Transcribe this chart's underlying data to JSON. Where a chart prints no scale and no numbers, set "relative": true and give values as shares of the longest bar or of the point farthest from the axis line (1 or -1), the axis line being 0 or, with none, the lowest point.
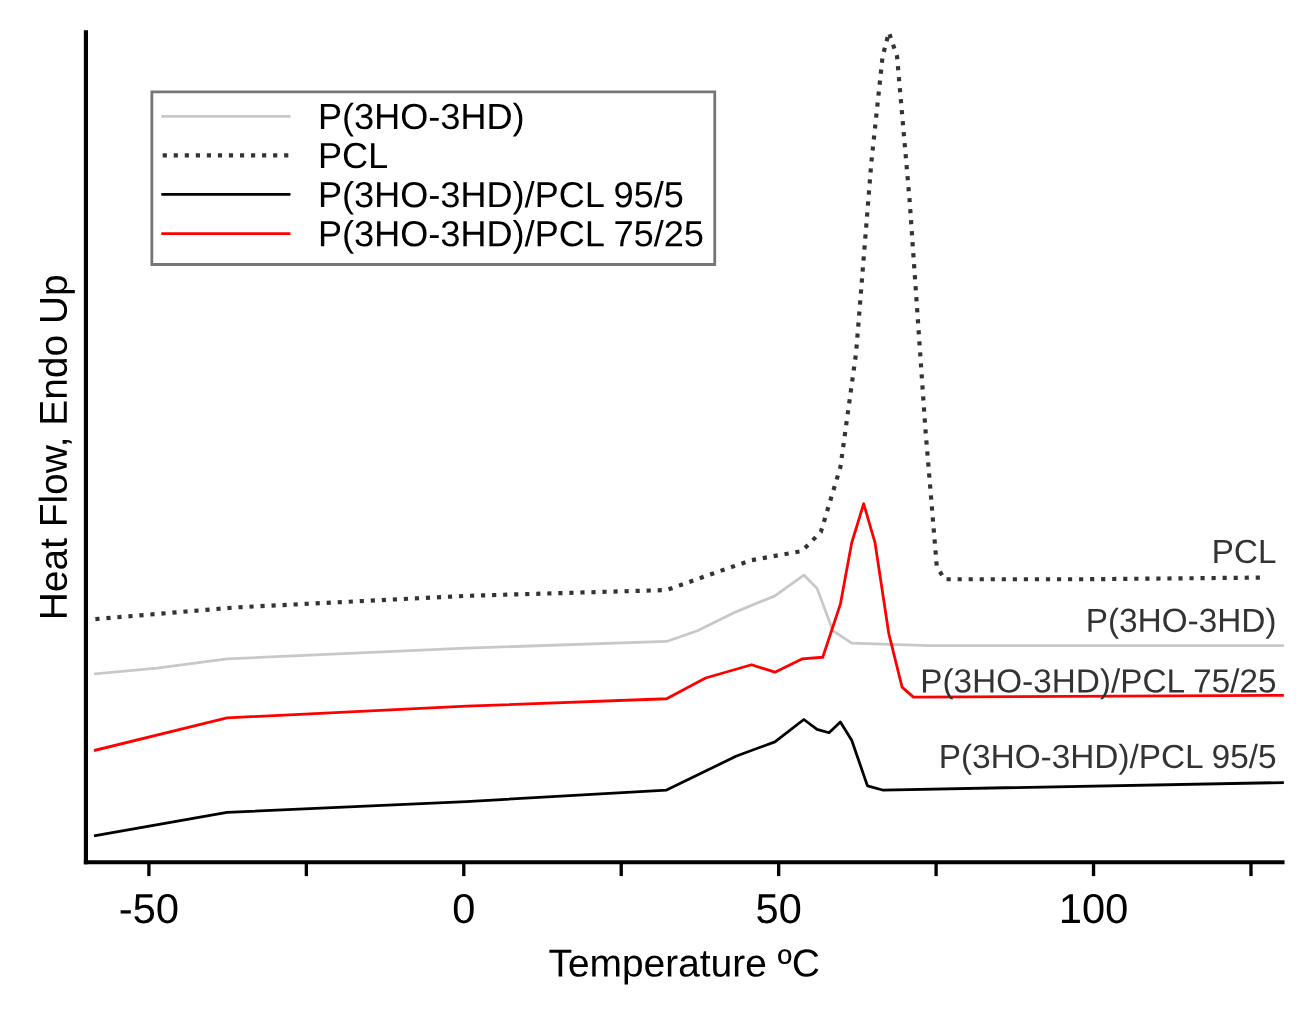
{
  "chart_data": {
    "type": "line",
    "relative": true,
    "xlabel": "Temperature ºC",
    "ylabel": "Heat Flow, Endo Up",
    "xlim": [
      -60,
      130
    ],
    "xticks": [
      -50,
      {
        "value": -25,
        "label": null
      },
      0,
      {
        "value": 25,
        "label": null
      },
      50,
      {
        "value": 75,
        "label": null
      },
      100,
      {
        "value": 125,
        "label": null
      }
    ],
    "legend": "top left",
    "grid": false,
    "marker": "none",
    "tick_labels": "x",
    "series": [
      {
        "name": "P(3HO-3HD)",
        "color": "#c8c8c8",
        "line_style": "solid",
        "x": [
          -58.5,
          -48.7,
          -37.6,
          0.4,
          32.2,
          37.1,
          43.3,
          49.4,
          54,
          56.1,
          58.6,
          61.6,
          73.9,
          130
        ],
        "values": [
          0.227,
          0.234,
          0.245,
          0.258,
          0.266,
          0.279,
          0.302,
          0.321,
          0.346,
          0.33,
          0.279,
          0.264,
          0.261,
          0.261
        ]
      },
      {
        "name": "PCL",
        "color": "#333333",
        "line_style": "dotted",
        "x": [
          -58.5,
          -36.4,
          0.4,
          32.2,
          39.6,
          45.7,
          53.7,
          56.7,
          59.8,
          62.3,
          64.7,
          66.5,
          67.5,
          68.8,
          70.8,
          73.3,
          75.1,
          76.3,
          98.4,
          126.6
        ],
        "values": [
          0.293,
          0.307,
          0.321,
          0.328,
          0.348,
          0.364,
          0.375,
          0.398,
          0.476,
          0.614,
          0.842,
          0.971,
          1.0,
          0.971,
          0.797,
          0.522,
          0.357,
          0.341,
          0.341,
          0.343
        ]
      },
      {
        "name": "P(3HO-3HD)/PCL 95/5",
        "color": "#000000",
        "line_style": "solid",
        "x": [
          -58.5,
          -37.6,
          0.4,
          32.2,
          37.1,
          43.3,
          49.4,
          54,
          56.1,
          58,
          59.8,
          61.6,
          64.1,
          66.5,
          130
        ],
        "values": [
          0.032,
          0.06,
          0.073,
          0.087,
          0.105,
          0.128,
          0.145,
          0.172,
          0.16,
          0.156,
          0.169,
          0.147,
          0.092,
          0.087,
          0.096
        ]
      },
      {
        "name": "P(3HO-3HD)/PCL 75/25",
        "color": "#ff0000",
        "line_style": "solid",
        "x": [
          -58.5,
          -37.6,
          0.4,
          32.2,
          38.4,
          45.7,
          49.4,
          53.7,
          57,
          59.8,
          61.6,
          63.5,
          65.3,
          67.5,
          69.6,
          71.4,
          130
        ],
        "values": [
          0.135,
          0.174,
          0.188,
          0.197,
          0.222,
          0.238,
          0.229,
          0.245,
          0.247,
          0.311,
          0.385,
          0.432,
          0.385,
          0.275,
          0.211,
          0.199,
          0.201
        ]
      }
    ],
    "annotations": [
      "PCL",
      "P(3HO-3HD)",
      "P(3HO-3HD)/PCL 75/25",
      "P(3HO-3HD)/PCL 95/5"
    ]
  }
}
